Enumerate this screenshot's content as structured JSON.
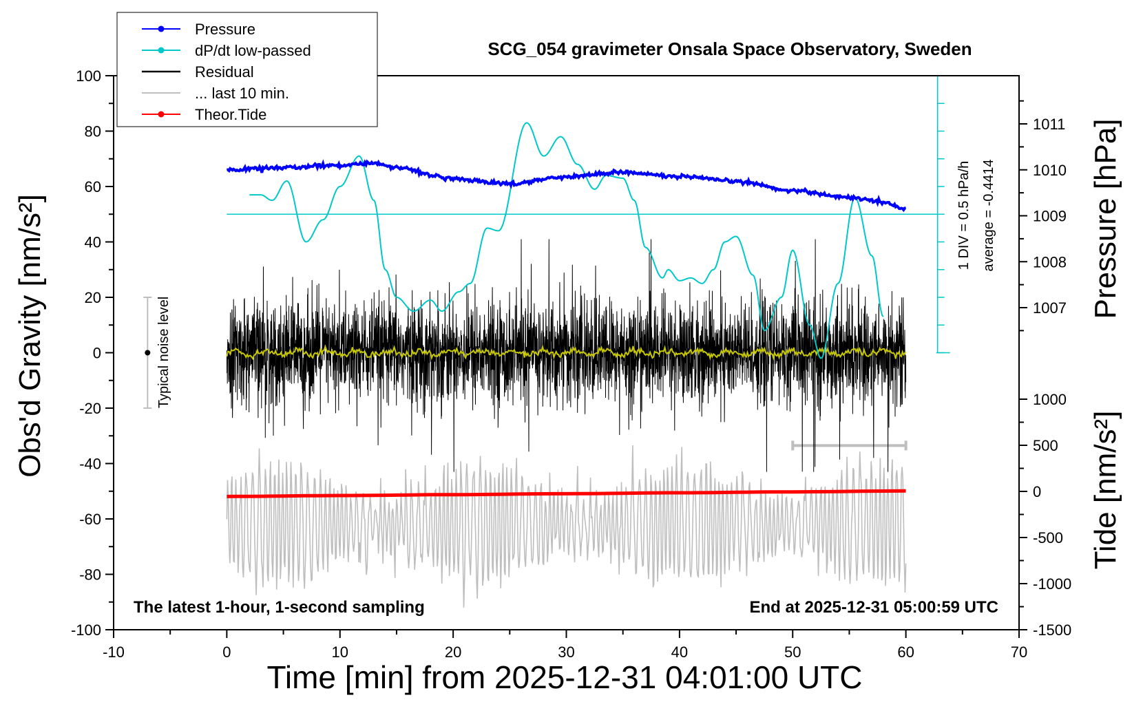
{
  "chart_data": {
    "type": "line",
    "title": "SCG_054 gravimeter Onsala Space Observatory, Sweden",
    "xlabel": "Time [min] from 2025-12-31 04:01:00 UTC",
    "ylabel_left": "Obs'd Gravity [nm/s²]",
    "ylabel_right_top": "Pressure [hPa]",
    "ylabel_right_bottom": "Tide [nm/s²]",
    "xlim": [
      -10,
      70
    ],
    "ylim": [
      -100,
      100
    ],
    "pressure_lim": [
      1006,
      1012
    ],
    "tide_lim": [
      -1500,
      1000
    ],
    "x_ticks": [
      "-10",
      "0",
      "10",
      "20",
      "30",
      "40",
      "50",
      "60",
      "70"
    ],
    "y_ticks": [
      "-100",
      "-80",
      "-60",
      "-40",
      "-20",
      "0",
      "20",
      "40",
      "60",
      "80",
      "100"
    ],
    "pressure_ticks": [
      "1007",
      "1008",
      "1009",
      "1010",
      "1011"
    ],
    "tide_ticks": [
      "-1500",
      "-1000",
      "-500",
      "0",
      "500",
      "1000"
    ],
    "legend": {
      "placement": "top-left",
      "entries": [
        {
          "label": "Pressure",
          "color": "#0000ff",
          "marker": true
        },
        {
          "label": "dP/dt low-passed",
          "color": "#00c8c8",
          "marker": true
        },
        {
          "label": "Residual",
          "color": "#000000",
          "marker": false
        },
        {
          "label": "... last 10 min.",
          "color": "#bebebe",
          "marker": false
        },
        {
          "label": "Theor.Tide",
          "color": "#ff0000",
          "marker": true
        }
      ]
    },
    "annotations": {
      "bottom_left": "The latest 1-hour, 1-second sampling",
      "bottom_right": "End at 2025-12-31 05:00:59 UTC",
      "noise_label": "Typical noise level",
      "noise_range": [
        -20,
        20
      ],
      "dpdt_scale": "1 DIV = 0.5 hPa/h",
      "dpdt_average": "average = -0.4414",
      "last10_bar_x": [
        50,
        60
      ]
    },
    "series": [
      {
        "name": "Pressure",
        "color": "#0000ff",
        "x": [
          0,
          5,
          10,
          12.5,
          15,
          20,
          25,
          30,
          35,
          40,
          45,
          50,
          55,
          58,
          60
        ],
        "y": [
          1010.0,
          1010.05,
          1010.1,
          1010.15,
          1010.05,
          1009.8,
          1009.7,
          1009.85,
          1009.95,
          1009.85,
          1009.75,
          1009.55,
          1009.4,
          1009.3,
          1009.15
        ]
      },
      {
        "name": "dP/dt low-passed",
        "color": "#00c8c8",
        "x": [
          2,
          3,
          4,
          5.3,
          7,
          8.5,
          10,
          11.7,
          13,
          14,
          15,
          16.5,
          18,
          19,
          20.5,
          21.5,
          23,
          24,
          26.5,
          28,
          29.5,
          31,
          32.5,
          33.5,
          35,
          36,
          37,
          38.5,
          39,
          40,
          41,
          42,
          43,
          44,
          45,
          46.5,
          47.5,
          49,
          50,
          51.5,
          52.5,
          54,
          55.5,
          57,
          58
        ],
        "y": [
          57,
          57,
          55,
          62,
          40,
          48,
          60,
          71,
          55,
          30,
          20,
          15,
          19,
          15,
          22,
          25,
          45,
          44,
          83,
          71,
          78,
          68,
          59,
          64,
          63,
          55,
          38,
          27,
          30,
          26,
          27,
          25,
          30,
          40,
          42,
          28,
          8,
          20,
          37,
          10,
          -2,
          25,
          56,
          35,
          13
        ]
      },
      {
        "name": "Theor.Tide",
        "color": "#ff0000",
        "x": [
          0,
          10,
          20,
          30,
          40,
          50,
          60
        ],
        "y": [
          -55,
          -45,
          -35,
          -25,
          -15,
          -5,
          5
        ]
      },
      {
        "name": "Residual",
        "color": "#000000",
        "x": [
          0,
          60
        ],
        "y_range": [
          -43,
          41
        ]
      },
      {
        "name": "... last 10 min.",
        "color": "#bebebe",
        "x": [
          0,
          60
        ],
        "y_range": [
          -92,
          -32
        ]
      }
    ]
  }
}
